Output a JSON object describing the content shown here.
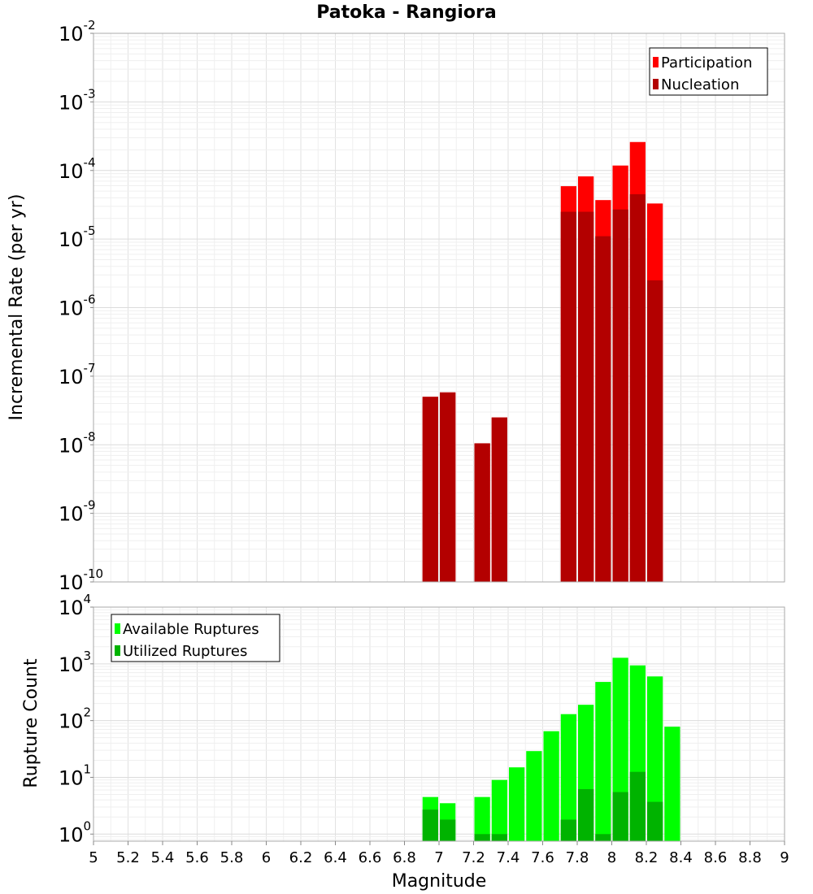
{
  "chart_data": [
    {
      "type": "bar",
      "title": "Patoka - Rangiora",
      "xlabel": "",
      "ylabel": "Incremental Rate (per yr)",
      "yscale": "log",
      "ylim": [
        1e-10,
        0.01
      ],
      "xlim": [
        5,
        9
      ],
      "grid": true,
      "legend_position": "top-right",
      "bin_width": 0.1,
      "series": [
        {
          "name": "Participation",
          "color": "#ff0000",
          "x": [
            6.95,
            7.05,
            7.25,
            7.35,
            7.75,
            7.85,
            7.95,
            8.05,
            8.15,
            8.25
          ],
          "values": [
            5e-08,
            5.8e-08,
            1.05e-08,
            2.5e-08,
            5.9e-05,
            8.2e-05,
            3.7e-05,
            0.000118,
            0.00026,
            3.3e-05
          ]
        },
        {
          "name": "Nucleation",
          "color": "#b30000",
          "x": [
            6.95,
            7.05,
            7.25,
            7.35,
            7.75,
            7.85,
            7.95,
            8.05,
            8.15,
            8.25
          ],
          "values": [
            5e-08,
            5.8e-08,
            1.05e-08,
            2.5e-08,
            2.5e-05,
            2.5e-05,
            1.1e-05,
            2.7e-05,
            4.5e-05,
            2.5e-06
          ]
        }
      ]
    },
    {
      "type": "bar",
      "title": "",
      "xlabel": "Magnitude",
      "ylabel": "Rupture Count",
      "yscale": "log",
      "ylim": [
        0.75,
        10000
      ],
      "xlim": [
        5,
        9
      ],
      "grid": true,
      "legend_position": "top-left",
      "bin_width": 0.1,
      "x_ticks": [
        "5",
        "5.2",
        "5.4",
        "5.6",
        "5.8",
        "6",
        "6.2",
        "6.4",
        "6.6",
        "6.8",
        "7",
        "7.2",
        "7.4",
        "7.6",
        "7.8",
        "8",
        "8.2",
        "8.4",
        "8.6",
        "8.8",
        "9"
      ],
      "series": [
        {
          "name": "Available Ruptures",
          "color": "#00ff00",
          "x": [
            6.95,
            7.05,
            7.25,
            7.35,
            7.45,
            7.55,
            7.65,
            7.75,
            7.85,
            7.95,
            8.05,
            8.15,
            8.25,
            8.35
          ],
          "values": [
            4.5,
            3.5,
            4.5,
            9,
            15,
            29,
            65,
            130,
            190,
            480,
            1280,
            940,
            600,
            78
          ]
        },
        {
          "name": "Utilized Ruptures",
          "color": "#00b300",
          "x": [
            6.95,
            7.05,
            7.25,
            7.35,
            7.75,
            7.85,
            7.95,
            8.05,
            8.15,
            8.25
          ],
          "values": [
            2.7,
            1.8,
            1,
            1,
            1.8,
            6.2,
            1,
            5.5,
            12.5,
            3.7
          ]
        }
      ]
    }
  ]
}
